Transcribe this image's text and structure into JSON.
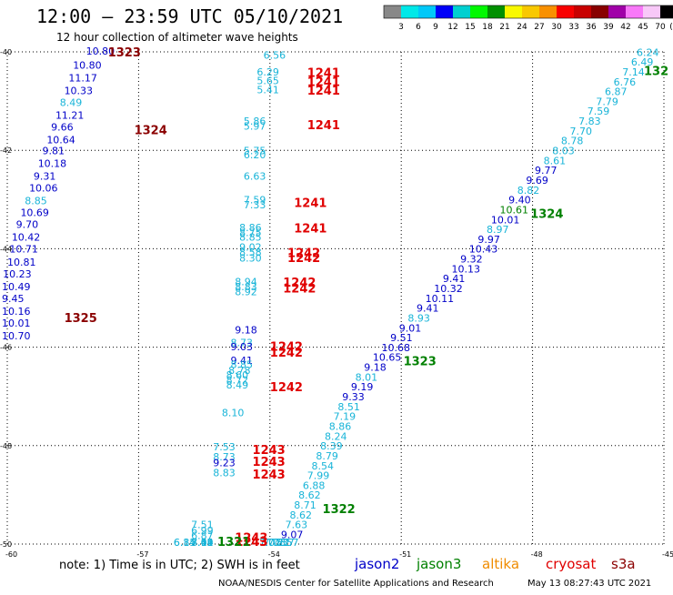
{
  "header": {
    "title": "12:00 – 23:59 UTC 05/10/2021",
    "subtitle": "12 hour collection of altimeter wave heights"
  },
  "color_scale": {
    "values": [
      "3",
      "6",
      "9",
      "12",
      "15",
      "18",
      "21",
      "24",
      "27",
      "30",
      "33",
      "36",
      "39",
      "42",
      "45",
      "70"
    ],
    "unit": "(ft)",
    "colors": [
      "#888888",
      "#00e8e8",
      "#00c8f8",
      "#0000f8",
      "#00d0d0",
      "#00f800",
      "#009000",
      "#f8f800",
      "#f8c800",
      "#f89000",
      "#f80000",
      "#c80000",
      "#880000",
      "#a000a8",
      "#f878f8",
      "#f8c8f8",
      "#000000"
    ]
  },
  "map": {
    "lon_min": -60,
    "lon_max": -45,
    "lat_min": -50,
    "lat_max": -40,
    "x_ticks": [
      {
        "v": -60,
        "label": "-60"
      },
      {
        "v": -57,
        "label": "-57"
      },
      {
        "v": -54,
        "label": "-54"
      },
      {
        "v": -51,
        "label": "-51"
      },
      {
        "v": -48,
        "label": "-48"
      },
      {
        "v": -45,
        "label": "-45"
      }
    ],
    "y_ticks": [
      {
        "v": -40,
        "label": "-40"
      },
      {
        "v": -42,
        "label": "-42"
      },
      {
        "v": -44,
        "label": "-44"
      },
      {
        "v": -46,
        "label": "-46"
      },
      {
        "v": -48,
        "label": "-48"
      },
      {
        "v": -50,
        "label": "-50"
      }
    ]
  },
  "colors": {
    "jason2": "#0000c8",
    "jason3": "#008000",
    "altika": "#f08c00",
    "cryosat": "#e00000",
    "s3a": "#8b0000",
    "cyan": "#18b4d8"
  },
  "footer": {
    "note": "note:  1) Time is in UTC;  2) SWH is in feet",
    "legend": [
      {
        "label": "jason2",
        "key": "jason2"
      },
      {
        "label": "jason3",
        "key": "jason3"
      },
      {
        "label": "altika",
        "key": "altika"
      },
      {
        "label": "cryosat",
        "key": "cryosat"
      },
      {
        "label": "s3a",
        "key": "s3a"
      }
    ],
    "credit": "NOAA/NESDIS Center for Satellite Applications and Research",
    "timestamp": "May 13 08:27:43 UTC 2021"
  },
  "observations": [
    {
      "lon": -58.2,
      "lat": -40.04,
      "v": "10.80",
      "c": "jason2"
    },
    {
      "lon": -58.5,
      "lat": -40.34,
      "v": "10.80",
      "c": "jason2"
    },
    {
      "lon": -58.6,
      "lat": -40.6,
      "v": "11.17",
      "c": "jason2"
    },
    {
      "lon": -58.7,
      "lat": -40.86,
      "v": "10.33",
      "c": "jason2"
    },
    {
      "lon": -58.8,
      "lat": -41.1,
      "v": "8.49",
      "c": "cyan"
    },
    {
      "lon": -58.9,
      "lat": -41.36,
      "v": "11.21",
      "c": "jason2"
    },
    {
      "lon": -59.0,
      "lat": -41.6,
      "v": "9.66",
      "c": "jason2"
    },
    {
      "lon": -59.1,
      "lat": -41.86,
      "v": "10.64",
      "c": "jason2"
    },
    {
      "lon": -59.2,
      "lat": -42.08,
      "v": "9.81",
      "c": "jason2"
    },
    {
      "lon": -59.3,
      "lat": -42.34,
      "v": "10.18",
      "c": "jason2"
    },
    {
      "lon": -59.4,
      "lat": -42.6,
      "v": "9.31",
      "c": "jason2"
    },
    {
      "lon": -59.5,
      "lat": -42.84,
      "v": "10.06",
      "c": "jason2"
    },
    {
      "lon": -59.6,
      "lat": -43.1,
      "v": "8.85",
      "c": "cyan"
    },
    {
      "lon": -59.7,
      "lat": -43.34,
      "v": "10.69",
      "c": "jason2"
    },
    {
      "lon": -59.8,
      "lat": -43.58,
      "v": "9.70",
      "c": "jason2"
    },
    {
      "lon": -59.9,
      "lat": -43.84,
      "v": "10.42",
      "c": "jason2"
    },
    {
      "lon": -59.95,
      "lat": -44.08,
      "v": "10.71",
      "c": "jason2"
    },
    {
      "lon": -60.0,
      "lat": -44.34,
      "v": "10.81",
      "c": "jason2"
    },
    {
      "lon": -60.1,
      "lat": -44.58,
      "v": "10.23",
      "c": "jason2"
    },
    {
      "lon": -60.2,
      "lat": -44.84,
      "v": "10.49",
      "c": "jason2"
    },
    {
      "lon": -60.25,
      "lat": -45.08,
      "v": "9.45",
      "c": "jason2"
    },
    {
      "lon": -60.3,
      "lat": -45.34,
      "v": "10.16",
      "c": "jason2"
    },
    {
      "lon": -60.35,
      "lat": -45.58,
      "v": "10.01",
      "c": "jason2"
    },
    {
      "lon": -60.4,
      "lat": -45.84,
      "v": "10.70",
      "c": "jason2"
    },
    {
      "lon": -54.15,
      "lat": -40.14,
      "v": "6.56",
      "c": "cyan"
    },
    {
      "lon": -54.3,
      "lat": -40.48,
      "v": "6.29",
      "c": "cyan"
    },
    {
      "lon": -54.3,
      "lat": -40.66,
      "v": "5.65",
      "c": "cyan"
    },
    {
      "lon": -54.3,
      "lat": -40.84,
      "v": "5.41",
      "c": "cyan"
    },
    {
      "lon": -54.6,
      "lat": -41.48,
      "v": "5.86",
      "c": "cyan"
    },
    {
      "lon": -54.6,
      "lat": -41.58,
      "v": "5.97",
      "c": "cyan"
    },
    {
      "lon": -54.6,
      "lat": -42.08,
      "v": "5.75",
      "c": "cyan"
    },
    {
      "lon": -54.6,
      "lat": -42.16,
      "v": "6.20",
      "c": "cyan"
    },
    {
      "lon": -54.6,
      "lat": -42.6,
      "v": "6.63",
      "c": "cyan"
    },
    {
      "lon": -54.6,
      "lat": -43.08,
      "v": "7.59",
      "c": "cyan"
    },
    {
      "lon": -54.6,
      "lat": -43.18,
      "v": "7.33",
      "c": "cyan"
    },
    {
      "lon": -54.7,
      "lat": -43.64,
      "v": "8.86",
      "c": "cyan"
    },
    {
      "lon": -54.7,
      "lat": -43.74,
      "v": "8.75",
      "c": "cyan"
    },
    {
      "lon": -54.7,
      "lat": -43.84,
      "v": "8.85",
      "c": "cyan"
    },
    {
      "lon": -54.7,
      "lat": -44.04,
      "v": "9.02",
      "c": "cyan"
    },
    {
      "lon": -54.7,
      "lat": -44.14,
      "v": "8.58",
      "c": "cyan"
    },
    {
      "lon": -54.7,
      "lat": -44.26,
      "v": "8.30",
      "c": "cyan"
    },
    {
      "lon": -54.8,
      "lat": -44.74,
      "v": "8.94",
      "c": "cyan"
    },
    {
      "lon": -54.8,
      "lat": -44.84,
      "v": "8.83",
      "c": "cyan"
    },
    {
      "lon": -54.8,
      "lat": -44.94,
      "v": "8.92",
      "c": "cyan"
    },
    {
      "lon": -54.8,
      "lat": -45.72,
      "v": "9.18",
      "c": "jason2"
    },
    {
      "lon": -54.9,
      "lat": -45.98,
      "v": "8.73",
      "c": "cyan"
    },
    {
      "lon": -54.9,
      "lat": -46.06,
      "v": "9.03",
      "c": "jason2"
    },
    {
      "lon": -54.9,
      "lat": -46.34,
      "v": "9.41",
      "c": "jason2"
    },
    {
      "lon": -54.9,
      "lat": -46.42,
      "v": "8.85",
      "c": "cyan"
    },
    {
      "lon": -54.95,
      "lat": -46.54,
      "v": "8.78",
      "c": "cyan"
    },
    {
      "lon": -55.0,
      "lat": -46.64,
      "v": "8.60",
      "c": "cyan"
    },
    {
      "lon": -55.0,
      "lat": -46.74,
      "v": "8.72",
      "c": "cyan"
    },
    {
      "lon": -55.0,
      "lat": -46.84,
      "v": "8.49",
      "c": "cyan"
    },
    {
      "lon": -55.1,
      "lat": -47.4,
      "v": "8.10",
      "c": "cyan"
    },
    {
      "lon": -55.3,
      "lat": -48.1,
      "v": "7.53",
      "c": "cyan"
    },
    {
      "lon": -55.3,
      "lat": -48.3,
      "v": "8.73",
      "c": "cyan"
    },
    {
      "lon": -55.3,
      "lat": -48.42,
      "v": "9.23",
      "c": "jason2"
    },
    {
      "lon": -55.3,
      "lat": -48.62,
      "v": "8.83",
      "c": "cyan"
    },
    {
      "lon": -55.8,
      "lat": -49.68,
      "v": "7.51",
      "c": "cyan"
    },
    {
      "lon": -55.8,
      "lat": -49.8,
      "v": "6.99",
      "c": "cyan"
    },
    {
      "lon": -55.8,
      "lat": -49.9,
      "v": "6.87",
      "c": "cyan"
    },
    {
      "lon": -55.8,
      "lat": -50.1,
      "v": "8.02",
      "c": "cyan"
    },
    {
      "lon": -55.8,
      "lat": -50.48,
      "v": "7.64",
      "c": "cyan"
    },
    {
      "lon": -55.8,
      "lat": -50.58,
      "v": "7.41",
      "c": "cyan"
    },
    {
      "lon": -55.8,
      "lat": -50.76,
      "v": "7.19",
      "c": "cyan"
    },
    {
      "lon": -55.8,
      "lat": -50.92,
      "v": "7.15",
      "c": "cyan"
    },
    {
      "lon": -56.2,
      "lat": -51.66,
      "v": "6.15",
      "c": "cyan"
    },
    {
      "lon": -56.2,
      "lat": -51.76,
      "v": "6.84",
      "c": "cyan"
    },
    {
      "lon": -45.55,
      "lat": -40.08,
      "v": "6.24",
      "c": "cyan"
    },
    {
      "lon": -45.75,
      "lat": -40.28,
      "v": "6.49",
      "c": "cyan"
    },
    {
      "lon": -45.95,
      "lat": -40.48,
      "v": "7.14",
      "c": "cyan"
    },
    {
      "lon": -46.15,
      "lat": -40.68,
      "v": "6.76",
      "c": "cyan"
    },
    {
      "lon": -46.35,
      "lat": -40.88,
      "v": "6.87",
      "c": "cyan"
    },
    {
      "lon": -46.55,
      "lat": -41.08,
      "v": "7.79",
      "c": "cyan"
    },
    {
      "lon": -46.75,
      "lat": -41.28,
      "v": "7.59",
      "c": "cyan"
    },
    {
      "lon": -46.95,
      "lat": -41.48,
      "v": "7.83",
      "c": "cyan"
    },
    {
      "lon": -47.15,
      "lat": -41.68,
      "v": "7.70",
      "c": "cyan"
    },
    {
      "lon": -47.35,
      "lat": -41.88,
      "v": "8.78",
      "c": "cyan"
    },
    {
      "lon": -47.55,
      "lat": -42.08,
      "v": "8.03",
      "c": "cyan"
    },
    {
      "lon": -47.75,
      "lat": -42.28,
      "v": "8.61",
      "c": "cyan"
    },
    {
      "lon": -47.95,
      "lat": -42.48,
      "v": "9.77",
      "c": "jason2"
    },
    {
      "lon": -48.15,
      "lat": -42.68,
      "v": "9.69",
      "c": "jason2"
    },
    {
      "lon": -48.35,
      "lat": -42.88,
      "v": "8.82",
      "c": "cyan"
    },
    {
      "lon": -48.55,
      "lat": -43.08,
      "v": "9.40",
      "c": "jason2"
    },
    {
      "lon": -48.75,
      "lat": -43.28,
      "v": "10.61",
      "c": "jason3"
    },
    {
      "lon": -48.95,
      "lat": -43.48,
      "v": "10.01",
      "c": "jason2"
    },
    {
      "lon": -49.05,
      "lat": -43.68,
      "v": "8.97",
      "c": "cyan"
    },
    {
      "lon": -49.25,
      "lat": -43.88,
      "v": "9.97",
      "c": "jason2"
    },
    {
      "lon": -49.45,
      "lat": -44.08,
      "v": "10.43",
      "c": "jason2"
    },
    {
      "lon": -49.65,
      "lat": -44.28,
      "v": "9.32",
      "c": "jason2"
    },
    {
      "lon": -49.85,
      "lat": -44.48,
      "v": "10.13",
      "c": "jason2"
    },
    {
      "lon": -50.05,
      "lat": -44.68,
      "v": "9.41",
      "c": "jason2"
    },
    {
      "lon": -50.25,
      "lat": -44.88,
      "v": "10.32",
      "c": "jason2"
    },
    {
      "lon": -50.45,
      "lat": -45.08,
      "v": "10.11",
      "c": "jason2"
    },
    {
      "lon": -50.65,
      "lat": -45.28,
      "v": "9.41",
      "c": "jason2"
    },
    {
      "lon": -50.85,
      "lat": -45.48,
      "v": "8.93",
      "c": "cyan"
    },
    {
      "lon": -51.05,
      "lat": -45.68,
      "v": "9.01",
      "c": "jason2"
    },
    {
      "lon": -51.25,
      "lat": -45.88,
      "v": "9.51",
      "c": "jason2"
    },
    {
      "lon": -51.45,
      "lat": -46.08,
      "v": "10.68",
      "c": "jason2"
    },
    {
      "lon": -51.65,
      "lat": -46.28,
      "v": "10.65",
      "c": "jason2"
    },
    {
      "lon": -51.85,
      "lat": -46.48,
      "v": "9.18",
      "c": "jason2"
    },
    {
      "lon": -52.05,
      "lat": -46.68,
      "v": "8.01",
      "c": "cyan"
    },
    {
      "lon": -52.15,
      "lat": -46.88,
      "v": "9.19",
      "c": "jason2"
    },
    {
      "lon": -52.35,
      "lat": -47.08,
      "v": "9.33",
      "c": "jason2"
    },
    {
      "lon": -52.45,
      "lat": -47.28,
      "v": "8.51",
      "c": "cyan"
    },
    {
      "lon": -52.55,
      "lat": -47.48,
      "v": "7.19",
      "c": "cyan"
    },
    {
      "lon": -52.65,
      "lat": -47.68,
      "v": "8.86",
      "c": "cyan"
    },
    {
      "lon": -52.75,
      "lat": -47.88,
      "v": "8.24",
      "c": "cyan"
    },
    {
      "lon": -52.85,
      "lat": -48.08,
      "v": "8.39",
      "c": "cyan"
    },
    {
      "lon": -52.95,
      "lat": -48.28,
      "v": "8.79",
      "c": "cyan"
    },
    {
      "lon": -53.05,
      "lat": -48.48,
      "v": "8.54",
      "c": "cyan"
    },
    {
      "lon": -53.15,
      "lat": -48.68,
      "v": "7.99",
      "c": "cyan"
    },
    {
      "lon": -53.25,
      "lat": -48.88,
      "v": "6.88",
      "c": "cyan"
    },
    {
      "lon": -53.35,
      "lat": -49.08,
      "v": "8.62",
      "c": "cyan"
    },
    {
      "lon": -53.45,
      "lat": -49.28,
      "v": "8.71",
      "c": "cyan"
    },
    {
      "lon": -53.55,
      "lat": -49.48,
      "v": "8.62",
      "c": "cyan"
    },
    {
      "lon": -53.65,
      "lat": -49.68,
      "v": "7.63",
      "c": "cyan"
    },
    {
      "lon": -53.75,
      "lat": -49.88,
      "v": "9.07",
      "c": "jason2"
    },
    {
      "lon": -53.85,
      "lat": -50.08,
      "v": "8.57",
      "c": "cyan"
    },
    {
      "lon": -53.95,
      "lat": -50.28,
      "v": "7.37",
      "c": "cyan"
    },
    {
      "lon": -54.05,
      "lat": -50.48,
      "v": "7.22",
      "c": "cyan"
    },
    {
      "lon": -54.15,
      "lat": -50.68,
      "v": "7.03",
      "c": "cyan"
    },
    {
      "lon": -54.25,
      "lat": -50.88,
      "v": "7.07",
      "c": "cyan"
    }
  ],
  "pass_labels": [
    {
      "lon": -57.7,
      "lat": -40.0,
      "v": "1323",
      "c": "s3a"
    },
    {
      "lon": -57.1,
      "lat": -41.58,
      "v": "1324",
      "c": "s3a"
    },
    {
      "lon": -58.7,
      "lat": -45.4,
      "v": "1325",
      "c": "s3a"
    },
    {
      "lon": -53.15,
      "lat": -40.42,
      "v": "1241",
      "c": "cryosat"
    },
    {
      "lon": -53.15,
      "lat": -40.6,
      "v": "1241",
      "c": "cryosat"
    },
    {
      "lon": -53.15,
      "lat": -40.78,
      "v": "1241",
      "c": "cryosat"
    },
    {
      "lon": -53.15,
      "lat": -41.48,
      "v": "1241",
      "c": "cryosat"
    },
    {
      "lon": -53.45,
      "lat": -43.06,
      "v": "1241",
      "c": "cryosat"
    },
    {
      "lon": -53.45,
      "lat": -43.58,
      "v": "1241",
      "c": "cryosat"
    },
    {
      "lon": -53.6,
      "lat": -44.08,
      "v": "1242",
      "c": "cryosat"
    },
    {
      "lon": -53.6,
      "lat": -44.18,
      "v": "1242",
      "c": "cryosat"
    },
    {
      "lon": -53.7,
      "lat": -44.68,
      "v": "1242",
      "c": "cryosat"
    },
    {
      "lon": -53.7,
      "lat": -44.8,
      "v": "1242",
      "c": "cryosat"
    },
    {
      "lon": -54.0,
      "lat": -45.98,
      "v": "1242",
      "c": "cryosat"
    },
    {
      "lon": -54.0,
      "lat": -46.1,
      "v": "1242",
      "c": "cryosat"
    },
    {
      "lon": -54.0,
      "lat": -46.8,
      "v": "1242",
      "c": "cryosat"
    },
    {
      "lon": -54.4,
      "lat": -48.08,
      "v": "1243",
      "c": "cryosat"
    },
    {
      "lon": -54.4,
      "lat": -48.32,
      "v": "1243",
      "c": "cryosat"
    },
    {
      "lon": -54.4,
      "lat": -48.58,
      "v": "1243",
      "c": "cryosat"
    },
    {
      "lon": -54.8,
      "lat": -49.86,
      "v": "1243",
      "c": "cryosat"
    },
    {
      "lon": -54.8,
      "lat": -50.42,
      "v": "1243",
      "c": "cryosat"
    },
    {
      "lon": -54.8,
      "lat": -50.56,
      "v": "1243",
      "c": "cryosat"
    },
    {
      "lon": -54.8,
      "lat": -50.7,
      "v": "1243",
      "c": "cryosat"
    },
    {
      "lon": -45.35,
      "lat": -40.38,
      "v": "132",
      "c": "jason3"
    },
    {
      "lon": -48.05,
      "lat": -43.28,
      "v": "1324",
      "c": "jason3"
    },
    {
      "lon": -50.95,
      "lat": -46.28,
      "v": "1323",
      "c": "jason3"
    },
    {
      "lon": -52.8,
      "lat": -49.28,
      "v": "1322",
      "c": "jason3"
    },
    {
      "lon": -55.2,
      "lat": -51.76,
      "v": "1321",
      "c": "jason3"
    }
  ]
}
